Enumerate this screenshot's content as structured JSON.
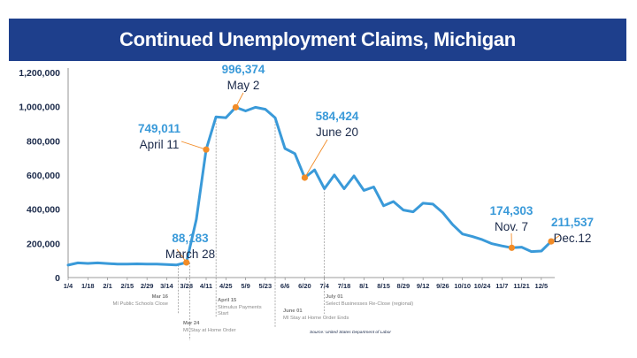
{
  "title": "Continued Unemployment Claims, Michigan",
  "source": "Source: United States Department of Labor",
  "colors": {
    "header": "#1e3f8c",
    "line": "#3a9ad9",
    "marker": "#f28c28",
    "axis_text": "#1b2a4a",
    "event_text": "#8a8a8a"
  },
  "chart_data": {
    "type": "line",
    "title": "Continued Unemployment Claims, Michigan",
    "xlabel": "",
    "ylabel": "",
    "ylim": [
      0,
      1200000
    ],
    "yticks": [
      0,
      200000,
      400000,
      600000,
      800000,
      1000000,
      1200000
    ],
    "ytick_labels": [
      "0",
      "200,000",
      "400,000",
      "600,000",
      "800,000",
      "1,000,000",
      "1,200,000"
    ],
    "x_tick_labels": [
      "1/4",
      "1/18",
      "2/1",
      "2/15",
      "2/29",
      "3/14",
      "3/28",
      "4/11",
      "4/25",
      "5/9",
      "5/23",
      "6/6",
      "6/20",
      "7/4",
      "7/18",
      "8/1",
      "8/15",
      "8/29",
      "9/12",
      "9/26",
      "10/10",
      "10/24",
      "11/7",
      "11/21",
      "12/5"
    ],
    "grid": false,
    "series": [
      {
        "values": [
          73000,
          86000,
          83000,
          86000,
          82000,
          79000,
          79000,
          80000,
          79000,
          79000,
          76000,
          74000,
          88183,
          340000,
          749011,
          940000,
          935000,
          996374,
          975000,
          996000,
          985000,
          935000,
          755000,
          725000,
          584424,
          630000,
          520000,
          600000,
          520000,
          595000,
          510000,
          530000,
          420000,
          445000,
          395000,
          385000,
          435000,
          430000,
          380000,
          310000,
          255000,
          240000,
          222000,
          198000,
          185000,
          174303,
          178000,
          152000,
          155000,
          211537
        ]
      }
    ],
    "highlights": [
      {
        "index": 12,
        "value": "88,183",
        "date": "March 28"
      },
      {
        "index": 14,
        "value": "749,011",
        "date": "April 11"
      },
      {
        "index": 17,
        "value": "996,374",
        "date": "May 2"
      },
      {
        "index": 24,
        "value": "584,424",
        "date": "June 20"
      },
      {
        "index": 45,
        "value": "174,303",
        "date": "Nov. 7"
      },
      {
        "index": 49,
        "value": "211,537",
        "date": "Dec.12"
      }
    ],
    "events": [
      {
        "index": 11,
        "date": "Mar 16",
        "text": [
          "MI Public Schools Close"
        ]
      },
      {
        "index": 12,
        "date": "Mar 24",
        "text": [
          "MI Stay at Home Order"
        ]
      },
      {
        "index": 15,
        "date": "April 15",
        "text": [
          "Stimulus Payments",
          "Start"
        ]
      },
      {
        "index": 21,
        "date": "June 01",
        "text": [
          "MI Stay at Home Order Ends"
        ]
      },
      {
        "index": 26,
        "date": "July 01",
        "text": [
          "Select Businesses Re-Close (regional)"
        ]
      }
    ]
  }
}
